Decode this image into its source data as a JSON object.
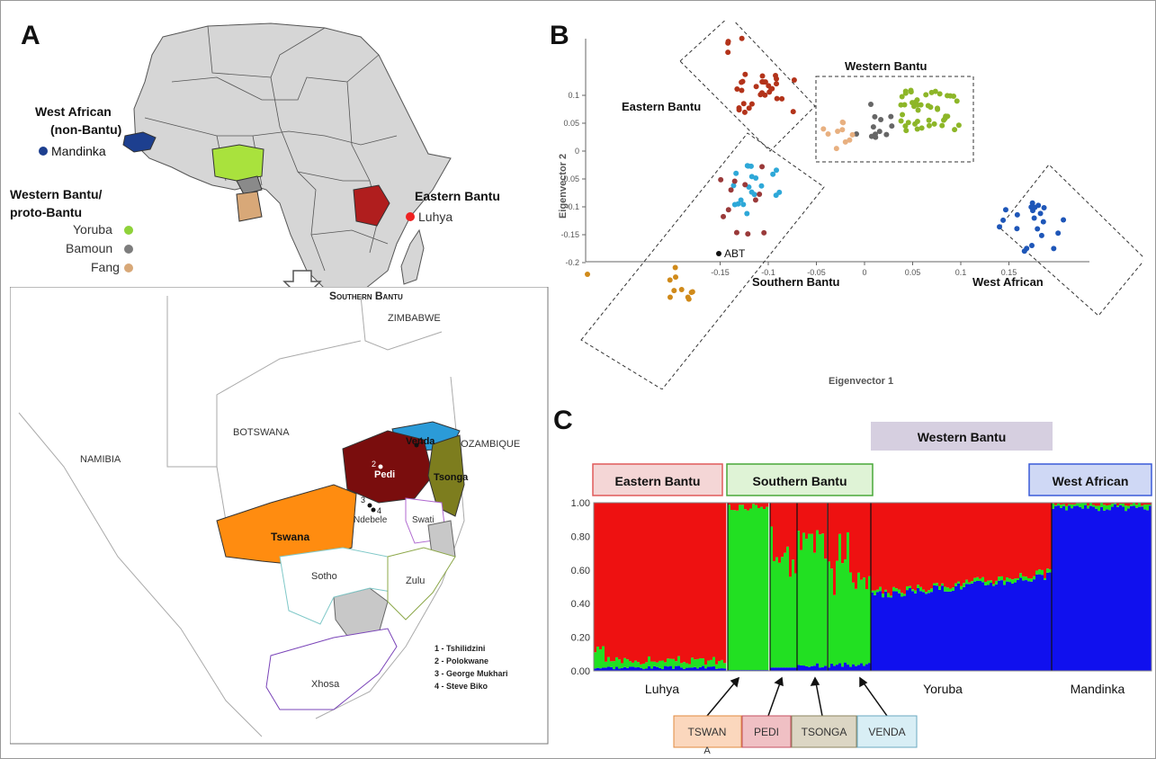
{
  "panels": {
    "a": "A",
    "b": "B",
    "c": "C"
  },
  "map_africa": {
    "west_african_title": "West African\n(non-Bantu)",
    "mandinka": "Mandinka",
    "western_bantu_title": "Western Bantu/\nproto-Bantu",
    "yoruba": "Yoruba",
    "bamoun": "Bamoun",
    "fang": "Fang",
    "eastern_bantu_title": "Eastern Bantu",
    "luhya": "Luhya",
    "colors": {
      "mandinka": "#1d3f8f",
      "yoruba": "#8fd23a",
      "bamoun": "#7d7d7d",
      "fang": "#d8a878",
      "luhya": "#ee2222",
      "eastern_fill": "#b01e1e"
    }
  },
  "map_southern": {
    "title": "Southern Bantu",
    "countries": [
      "ZIMBABWE",
      "BOTSWANA",
      "NAMIBIA",
      "MOZAMBIQUE"
    ],
    "groups": [
      "Venda",
      "Pedi",
      "Tsonga",
      "Tswana",
      "Ndebele",
      "Swati",
      "Sotho",
      "Zulu",
      "Xhosa"
    ],
    "sites": [
      "1 - Tshilidzini",
      "2 - Polokwane",
      "3 - George Mukhari",
      "4 - Steve Biko"
    ],
    "site_numbers": [
      "1",
      "2",
      "3",
      "4"
    ]
  },
  "pca": {
    "x": [
      -0.15,
      -0.1,
      -0.05,
      0,
      0.05,
      0.1,
      0.15
    ],
    "y": [
      0.1,
      0.05,
      0,
      -0.05,
      -0.1,
      -0.15,
      -0.2
    ],
    "xlabel": "Eigenvector 1",
    "ylabel": "Eigenvector 2",
    "labels": {
      "eastern": "Eastern Bantu",
      "western": "Western Bantu",
      "southern": "Southern Bantu",
      "west_african": "West African",
      "abt": "ABT"
    }
  },
  "chart_data": {
    "type": "bar",
    "stacked": true,
    "yticks": [
      "0.00",
      "0.20",
      "0.40",
      "0.60",
      "0.80",
      "1.00"
    ],
    "ylim": [
      0,
      1
    ],
    "populations": [
      "Luhya",
      "Yoruba",
      "Mandinka"
    ],
    "group_headers": [
      "Eastern Bantu",
      "Southern Bantu",
      "Western Bantu",
      "West African"
    ],
    "southern_subgroups": [
      "TSWAN\nA",
      "PEDI",
      "TSONGA",
      "VENDA"
    ],
    "series": [
      {
        "color": "#ee1111"
      },
      {
        "color": "#22e022"
      },
      {
        "color": "#1010ee"
      }
    ]
  }
}
